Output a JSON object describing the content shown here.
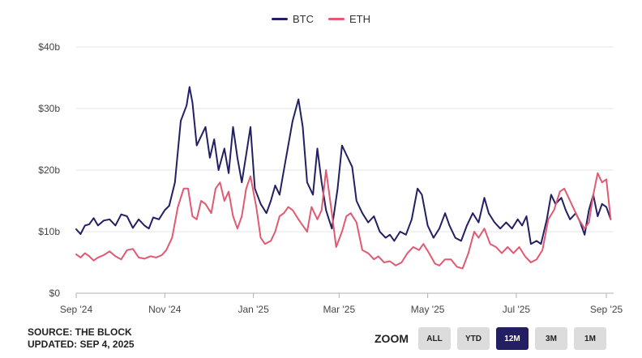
{
  "legend": [
    {
      "name": "BTC",
      "color": "#241f63"
    },
    {
      "name": "ETH",
      "color": "#e05a72"
    }
  ],
  "source": {
    "line1": "SOURCE: THE BLOCK",
    "line2": "UPDATED: SEP 4, 2025"
  },
  "zoom": {
    "label": "ZOOM",
    "buttons": [
      "ALL",
      "YTD",
      "12M",
      "3M",
      "1M"
    ],
    "active": "12M"
  },
  "chart_data": {
    "type": "line",
    "title": "",
    "xlabel": "",
    "ylabel": "",
    "ylim": [
      0,
      40
    ],
    "y_ticks": [
      0,
      10,
      20,
      30,
      40
    ],
    "y_tick_labels": [
      "$0",
      "$10b",
      "$20b",
      "$30b",
      "$40b"
    ],
    "x_tick_labels": [
      "Sep '24",
      "Nov '24",
      "Jan '25",
      "Mar '25",
      "May '25",
      "Jul '25",
      "Sep '25"
    ],
    "x_tick_dates": [
      "2024-09-01",
      "2024-11-01",
      "2025-01-01",
      "2025-03-01",
      "2025-05-01",
      "2025-07-01",
      "2025-09-01"
    ],
    "xlim": [
      "2024-09-01",
      "2025-09-06"
    ],
    "grid": "horizontal",
    "legend_position": "top-center",
    "series": [
      {
        "name": "BTC",
        "color": "#241f63",
        "points": [
          [
            "2024-09-01",
            10.4
          ],
          [
            "2024-09-04",
            9.6
          ],
          [
            "2024-09-07",
            11.0
          ],
          [
            "2024-09-10",
            11.2
          ],
          [
            "2024-09-13",
            12.2
          ],
          [
            "2024-09-16",
            11.0
          ],
          [
            "2024-09-20",
            11.8
          ],
          [
            "2024-09-24",
            12.0
          ],
          [
            "2024-09-28",
            11.0
          ],
          [
            "2024-10-02",
            12.8
          ],
          [
            "2024-10-06",
            12.5
          ],
          [
            "2024-10-10",
            10.6
          ],
          [
            "2024-10-14",
            12.0
          ],
          [
            "2024-10-18",
            11.0
          ],
          [
            "2024-10-21",
            10.5
          ],
          [
            "2024-10-24",
            12.3
          ],
          [
            "2024-10-28",
            12.0
          ],
          [
            "2024-11-01",
            13.5
          ],
          [
            "2024-11-04",
            14.2
          ],
          [
            "2024-11-08",
            18.0
          ],
          [
            "2024-11-12",
            28.0
          ],
          [
            "2024-11-16",
            30.5
          ],
          [
            "2024-11-18",
            33.5
          ],
          [
            "2024-11-20",
            31.0
          ],
          [
            "2024-11-23",
            24.0
          ],
          [
            "2024-11-26",
            25.5
          ],
          [
            "2024-11-29",
            27.0
          ],
          [
            "2024-12-02",
            22.0
          ],
          [
            "2024-12-05",
            25.0
          ],
          [
            "2024-12-08",
            20.0
          ],
          [
            "2024-12-12",
            23.5
          ],
          [
            "2024-12-15",
            19.5
          ],
          [
            "2024-12-18",
            27.0
          ],
          [
            "2024-12-21",
            22.0
          ],
          [
            "2024-12-24",
            18.0
          ],
          [
            "2024-12-27",
            22.5
          ],
          [
            "2024-12-30",
            27.0
          ],
          [
            "2025-01-02",
            17.0
          ],
          [
            "2025-01-06",
            14.5
          ],
          [
            "2025-01-10",
            13.0
          ],
          [
            "2025-01-13",
            15.0
          ],
          [
            "2025-01-16",
            17.5
          ],
          [
            "2025-01-19",
            16.0
          ],
          [
            "2025-01-22",
            20.0
          ],
          [
            "2025-01-25",
            24.0
          ],
          [
            "2025-01-28",
            28.0
          ],
          [
            "2025-02-01",
            31.5
          ],
          [
            "2025-02-04",
            27.0
          ],
          [
            "2025-02-07",
            18.0
          ],
          [
            "2025-02-11",
            16.0
          ],
          [
            "2025-02-14",
            23.5
          ],
          [
            "2025-02-17",
            18.0
          ],
          [
            "2025-02-20",
            13.5
          ],
          [
            "2025-02-24",
            10.5
          ],
          [
            "2025-02-28",
            17.0
          ],
          [
            "2025-03-03",
            24.0
          ],
          [
            "2025-03-06",
            22.5
          ],
          [
            "2025-03-10",
            20.5
          ],
          [
            "2025-03-13",
            15.0
          ],
          [
            "2025-03-17",
            13.0
          ],
          [
            "2025-03-21",
            11.5
          ],
          [
            "2025-03-25",
            12.5
          ],
          [
            "2025-03-29",
            10.0
          ],
          [
            "2025-04-02",
            9.0
          ],
          [
            "2025-04-05",
            9.5
          ],
          [
            "2025-04-08",
            8.5
          ],
          [
            "2025-04-12",
            10.0
          ],
          [
            "2025-04-16",
            9.5
          ],
          [
            "2025-04-20",
            12.0
          ],
          [
            "2025-04-24",
            17.0
          ],
          [
            "2025-04-27",
            16.0
          ],
          [
            "2025-05-01",
            11.0
          ],
          [
            "2025-05-05",
            9.0
          ],
          [
            "2025-05-09",
            10.5
          ],
          [
            "2025-05-13",
            13.0
          ],
          [
            "2025-05-16",
            11.0
          ],
          [
            "2025-05-20",
            9.0
          ],
          [
            "2025-05-24",
            8.5
          ],
          [
            "2025-05-28",
            11.0
          ],
          [
            "2025-06-01",
            13.0
          ],
          [
            "2025-06-05",
            11.5
          ],
          [
            "2025-06-09",
            15.5
          ],
          [
            "2025-06-12",
            13.0
          ],
          [
            "2025-06-16",
            11.5
          ],
          [
            "2025-06-20",
            10.5
          ],
          [
            "2025-06-24",
            11.5
          ],
          [
            "2025-06-28",
            10.5
          ],
          [
            "2025-07-02",
            12.0
          ],
          [
            "2025-07-05",
            11.0
          ],
          [
            "2025-07-08",
            12.5
          ],
          [
            "2025-07-11",
            8.0
          ],
          [
            "2025-07-15",
            8.5
          ],
          [
            "2025-07-18",
            8.0
          ],
          [
            "2025-07-22",
            12.0
          ],
          [
            "2025-07-25",
            16.0
          ],
          [
            "2025-07-28",
            14.5
          ],
          [
            "2025-08-01",
            15.5
          ],
          [
            "2025-08-04",
            13.5
          ],
          [
            "2025-08-07",
            12.0
          ],
          [
            "2025-08-11",
            13.0
          ],
          [
            "2025-08-14",
            11.5
          ],
          [
            "2025-08-17",
            9.5
          ],
          [
            "2025-08-20",
            13.5
          ],
          [
            "2025-08-23",
            16.0
          ],
          [
            "2025-08-26",
            12.5
          ],
          [
            "2025-08-29",
            14.5
          ],
          [
            "2025-09-01",
            14.0
          ],
          [
            "2025-09-04",
            12.0
          ]
        ]
      },
      {
        "name": "ETH",
        "color": "#e05a72",
        "points": [
          [
            "2024-09-01",
            6.3
          ],
          [
            "2024-09-04",
            5.8
          ],
          [
            "2024-09-07",
            6.5
          ],
          [
            "2024-09-10",
            6.0
          ],
          [
            "2024-09-13",
            5.3
          ],
          [
            "2024-09-16",
            5.8
          ],
          [
            "2024-09-20",
            6.2
          ],
          [
            "2024-09-24",
            6.8
          ],
          [
            "2024-09-28",
            6.0
          ],
          [
            "2024-10-02",
            5.5
          ],
          [
            "2024-10-06",
            7.0
          ],
          [
            "2024-10-10",
            7.2
          ],
          [
            "2024-10-14",
            5.8
          ],
          [
            "2024-10-18",
            5.6
          ],
          [
            "2024-10-22",
            6.0
          ],
          [
            "2024-10-26",
            5.8
          ],
          [
            "2024-10-30",
            6.2
          ],
          [
            "2024-11-02",
            7.0
          ],
          [
            "2024-11-06",
            9.0
          ],
          [
            "2024-11-10",
            14.0
          ],
          [
            "2024-11-14",
            17.0
          ],
          [
            "2024-11-17",
            17.0
          ],
          [
            "2024-11-20",
            12.5
          ],
          [
            "2024-11-23",
            12.0
          ],
          [
            "2024-11-26",
            15.0
          ],
          [
            "2024-11-29",
            14.5
          ],
          [
            "2024-12-03",
            13.0
          ],
          [
            "2024-12-06",
            17.0
          ],
          [
            "2024-12-09",
            18.0
          ],
          [
            "2024-12-12",
            15.0
          ],
          [
            "2024-12-15",
            16.5
          ],
          [
            "2024-12-18",
            12.5
          ],
          [
            "2024-12-21",
            10.5
          ],
          [
            "2024-12-24",
            12.5
          ],
          [
            "2024-12-27",
            17.0
          ],
          [
            "2024-12-30",
            19.0
          ],
          [
            "2025-01-03",
            14.0
          ],
          [
            "2025-01-06",
            9.0
          ],
          [
            "2025-01-09",
            8.0
          ],
          [
            "2025-01-13",
            8.5
          ],
          [
            "2025-01-16",
            10.0
          ],
          [
            "2025-01-19",
            12.5
          ],
          [
            "2025-01-22",
            13.0
          ],
          [
            "2025-01-25",
            14.0
          ],
          [
            "2025-01-28",
            13.5
          ],
          [
            "2025-02-01",
            12.0
          ],
          [
            "2025-02-04",
            11.0
          ],
          [
            "2025-02-07",
            10.0
          ],
          [
            "2025-02-10",
            14.0
          ],
          [
            "2025-02-14",
            12.0
          ],
          [
            "2025-02-17",
            13.5
          ],
          [
            "2025-02-20",
            20.0
          ],
          [
            "2025-02-24",
            13.0
          ],
          [
            "2025-02-27",
            7.5
          ],
          [
            "2025-03-03",
            10.0
          ],
          [
            "2025-03-06",
            12.5
          ],
          [
            "2025-03-09",
            13.0
          ],
          [
            "2025-03-13",
            11.5
          ],
          [
            "2025-03-17",
            7.0
          ],
          [
            "2025-03-21",
            6.5
          ],
          [
            "2025-03-25",
            5.5
          ],
          [
            "2025-03-28",
            6.0
          ],
          [
            "2025-04-01",
            5.0
          ],
          [
            "2025-04-05",
            5.2
          ],
          [
            "2025-04-09",
            4.5
          ],
          [
            "2025-04-13",
            5.0
          ],
          [
            "2025-04-17",
            6.5
          ],
          [
            "2025-04-21",
            7.5
          ],
          [
            "2025-04-25",
            7.0
          ],
          [
            "2025-04-28",
            8.0
          ],
          [
            "2025-05-02",
            6.5
          ],
          [
            "2025-05-06",
            4.8
          ],
          [
            "2025-05-09",
            4.5
          ],
          [
            "2025-05-13",
            5.5
          ],
          [
            "2025-05-17",
            5.5
          ],
          [
            "2025-05-21",
            4.3
          ],
          [
            "2025-05-25",
            4.0
          ],
          [
            "2025-05-29",
            6.5
          ],
          [
            "2025-06-02",
            10.0
          ],
          [
            "2025-06-05",
            9.0
          ],
          [
            "2025-06-09",
            10.5
          ],
          [
            "2025-06-13",
            8.0
          ],
          [
            "2025-06-17",
            7.5
          ],
          [
            "2025-06-21",
            6.5
          ],
          [
            "2025-06-25",
            7.5
          ],
          [
            "2025-06-29",
            6.5
          ],
          [
            "2025-07-03",
            7.5
          ],
          [
            "2025-07-07",
            6.0
          ],
          [
            "2025-07-11",
            5.0
          ],
          [
            "2025-07-15",
            5.5
          ],
          [
            "2025-07-19",
            7.0
          ],
          [
            "2025-07-23",
            12.0
          ],
          [
            "2025-07-27",
            13.5
          ],
          [
            "2025-07-31",
            16.5
          ],
          [
            "2025-08-03",
            17.0
          ],
          [
            "2025-08-06",
            15.5
          ],
          [
            "2025-08-10",
            13.5
          ],
          [
            "2025-08-13",
            12.0
          ],
          [
            "2025-08-17",
            10.5
          ],
          [
            "2025-08-20",
            11.5
          ],
          [
            "2025-08-23",
            16.0
          ],
          [
            "2025-08-26",
            19.5
          ],
          [
            "2025-08-29",
            18.0
          ],
          [
            "2025-09-01",
            18.5
          ],
          [
            "2025-09-04",
            12.0
          ]
        ]
      }
    ]
  }
}
